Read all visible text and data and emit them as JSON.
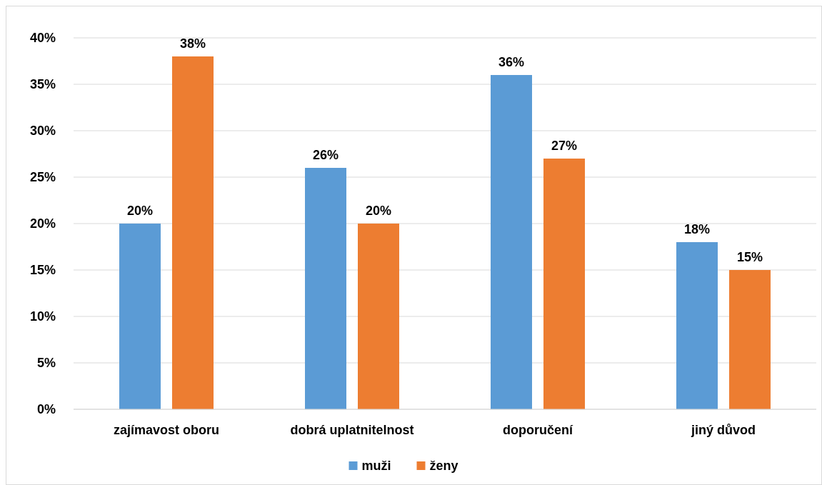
{
  "chart_data": {
    "type": "bar",
    "categories": [
      "zajímavost oboru",
      "dobrá uplatnitelnost",
      "doporučení",
      "jiný důvod"
    ],
    "series": [
      {
        "name": "muži",
        "color": "#5b9bd5",
        "values": [
          20,
          26,
          36,
          18
        ],
        "value_labels": [
          "20%",
          "26%",
          "36%",
          "18%"
        ]
      },
      {
        "name": "ženy",
        "color": "#ed7d31",
        "values": [
          38,
          20,
          27,
          15
        ],
        "value_labels": [
          "38%",
          "20%",
          "27%",
          "15%"
        ]
      }
    ],
    "ylim": [
      0,
      40
    ],
    "yticks": [
      {
        "value": 0,
        "label": "0%"
      },
      {
        "value": 5,
        "label": "5%"
      },
      {
        "value": 10,
        "label": "10%"
      },
      {
        "value": 15,
        "label": "15%"
      },
      {
        "value": 20,
        "label": "20%"
      },
      {
        "value": 25,
        "label": "25%"
      },
      {
        "value": 30,
        "label": "30%"
      },
      {
        "value": 35,
        "label": "35%"
      },
      {
        "value": 40,
        "label": "40%"
      }
    ],
    "grid": "y",
    "legend": "bottom"
  }
}
